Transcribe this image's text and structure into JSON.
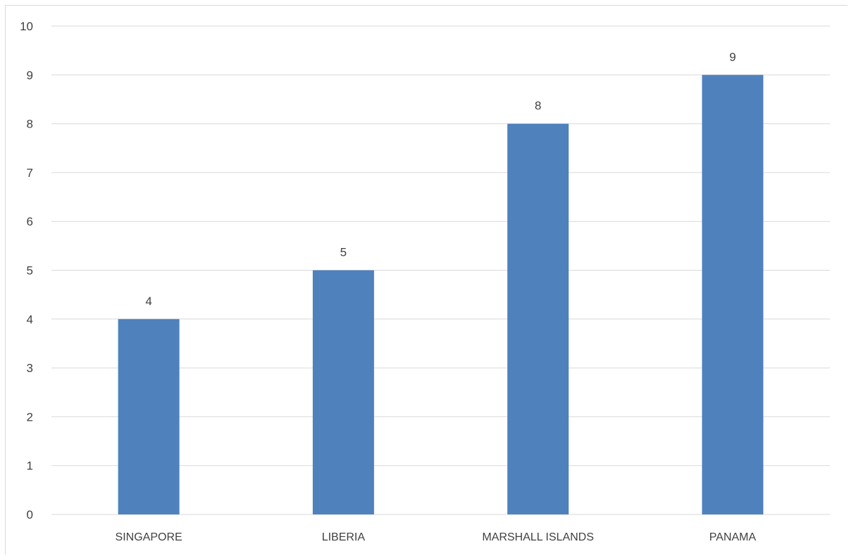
{
  "chart_data": {
    "type": "bar",
    "categories": [
      "SINGAPORE",
      "LIBERIA",
      "MARSHALL ISLANDS",
      "PANAMA"
    ],
    "values": [
      4,
      5,
      8,
      9
    ],
    "data_labels": [
      "4",
      "5",
      "8",
      "9"
    ],
    "ylim": [
      0,
      10
    ],
    "y_ticks": [
      "0",
      "1",
      "2",
      "3",
      "4",
      "5",
      "6",
      "7",
      "8",
      "9",
      "10"
    ],
    "grid": true,
    "legend": false,
    "colors": {
      "bar": "#4f81bd",
      "grid": "#d9d9d9",
      "axis": "#d9d9d9",
      "text": "#404040"
    }
  }
}
